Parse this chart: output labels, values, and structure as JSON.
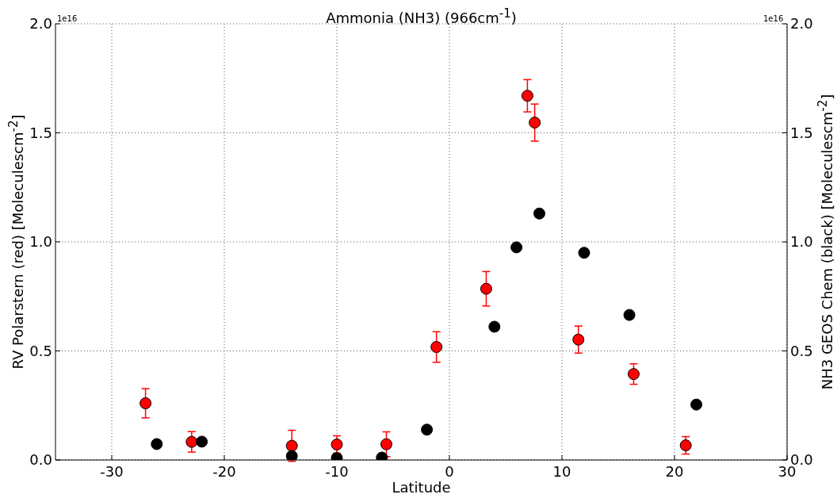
{
  "chart_data": {
    "type": "scatter",
    "title": "Ammonia (NH3) (966cm$^{-1}$)",
    "xlabel": "Latitude",
    "ylabel": "RV Polarstern (red) [Moleculescm$^{-2}$]",
    "y2label": "NH3 GEOS Chem (black) [Moleculescm$^{-2}$]",
    "annotations": [
      "1e16",
      "1e16"
    ],
    "xlim": [
      -35,
      30
    ],
    "xticks": [
      -30,
      -20,
      -10,
      0,
      10,
      20,
      30
    ],
    "ylim": [
      0,
      2.0
    ],
    "yticks": [
      {
        "value": 0,
        "label": "0.0"
      },
      {
        "value": 0.5,
        "label": "0.5"
      },
      {
        "value": 1,
        "label": "1.0"
      },
      {
        "value": 1.5,
        "label": "1.5"
      },
      {
        "value": 2,
        "label": "2.0"
      }
    ],
    "y2lim": [
      0,
      2.0
    ],
    "y2ticks": [
      {
        "value": 0,
        "label": "0.0"
      },
      {
        "value": 0.5,
        "label": "0.5"
      },
      {
        "value": 1,
        "label": "1.0"
      },
      {
        "value": 1.5,
        "label": "1.5"
      },
      {
        "value": 2,
        "label": "2.0"
      }
    ],
    "grid": true,
    "marker": "circle",
    "series": [
      {
        "color": "#ff0000",
        "x": [
          -27.0,
          -22.9,
          -14.0,
          -10.0,
          -5.6,
          -1.15,
          3.27,
          6.93,
          7.58,
          11.46,
          16.37,
          21.0
        ],
        "values": [
          0.26,
          0.083,
          0.065,
          0.071,
          0.072,
          0.518,
          0.785,
          1.67,
          1.547,
          0.552,
          0.394,
          0.067
        ],
        "errors": [
          0.067,
          0.047,
          0.071,
          0.04,
          0.057,
          0.07,
          0.079,
          0.074,
          0.085,
          0.062,
          0.047,
          0.04
        ]
      },
      {
        "axis": "y2",
        "color": "#000000",
        "x": [
          -26.0,
          -22.0,
          -14.0,
          -10.0,
          -6.0,
          -2.0,
          4.0,
          5.96,
          7.99,
          11.97,
          15.99,
          21.94
        ],
        "values": [
          0.073,
          0.084,
          0.018,
          0.009,
          0.011,
          0.139,
          0.611,
          0.975,
          1.13,
          0.95,
          0.665,
          0.254
        ]
      }
    ]
  }
}
